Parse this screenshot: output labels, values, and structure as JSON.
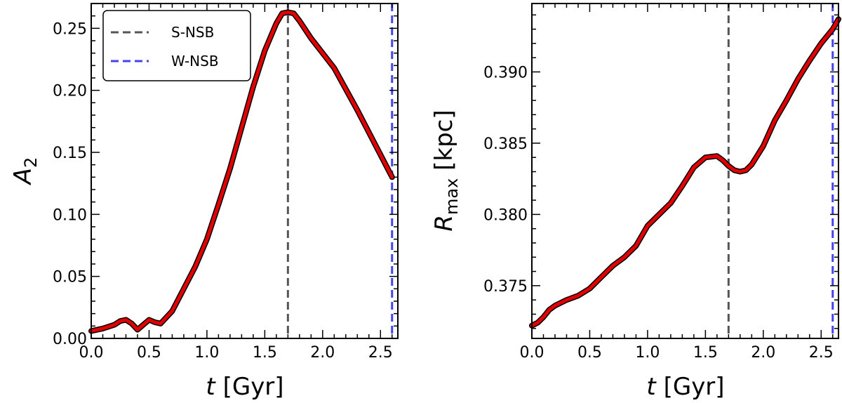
{
  "chart_data": [
    {
      "type": "line",
      "xlabel_var": "t",
      "xlabel_unit": "[Gyr]",
      "ylabel_var": "A",
      "ylabel_sub": "2",
      "xlim": [
        0.0,
        2.65
      ],
      "ylim": [
        0.0,
        0.27
      ],
      "xticks": [
        0.0,
        0.5,
        1.0,
        1.5,
        2.0,
        2.5
      ],
      "xtick_labels": [
        "0.0",
        "0.5",
        "1.0",
        "1.5",
        "2.0",
        "2.5"
      ],
      "yticks": [
        0.0,
        0.05,
        0.1,
        0.15,
        0.2,
        0.25
      ],
      "ytick_labels": [
        "0.00",
        "0.05",
        "0.10",
        "0.15",
        "0.20",
        "0.25"
      ],
      "series": [
        {
          "color": "#e00000",
          "x": [
            0.0,
            0.1,
            0.2,
            0.25,
            0.3,
            0.35,
            0.4,
            0.45,
            0.5,
            0.55,
            0.6,
            0.7,
            0.8,
            0.9,
            1.0,
            1.1,
            1.2,
            1.3,
            1.4,
            1.5,
            1.6,
            1.65,
            1.7,
            1.75,
            1.8,
            1.9,
            2.0,
            2.1,
            2.2,
            2.3,
            2.4,
            2.5,
            2.6
          ],
          "y": [
            0.006,
            0.008,
            0.011,
            0.014,
            0.015,
            0.012,
            0.007,
            0.011,
            0.015,
            0.013,
            0.012,
            0.022,
            0.04,
            0.058,
            0.08,
            0.108,
            0.137,
            0.17,
            0.203,
            0.232,
            0.254,
            0.262,
            0.263,
            0.262,
            0.256,
            0.242,
            0.23,
            0.218,
            0.201,
            0.184,
            0.166,
            0.148,
            0.13
          ]
        }
      ],
      "vlines": [
        {
          "x": 1.7,
          "color": "#555555",
          "label": "S-NSB"
        },
        {
          "x": 2.6,
          "color": "#4444ee",
          "label": "W-NSB"
        }
      ],
      "legend": {
        "position": "top-left",
        "entries": [
          "S-NSB",
          "W-NSB"
        ]
      },
      "grid": false
    },
    {
      "type": "line",
      "xlabel_var": "t",
      "xlabel_unit": "[Gyr]",
      "ylabel_var": "R",
      "ylabel_sub": "max",
      "ylabel_unit": "[kpc]",
      "xlim": [
        0.0,
        2.65
      ],
      "ylim": [
        0.3713,
        0.3948
      ],
      "xticks": [
        0.0,
        0.5,
        1.0,
        1.5,
        2.0,
        2.5
      ],
      "xtick_labels": [
        "0.0",
        "0.5",
        "1.0",
        "1.5",
        "2.0",
        "2.5"
      ],
      "yticks": [
        0.375,
        0.38,
        0.385,
        0.39
      ],
      "ytick_labels": [
        "0.375",
        "0.380",
        "0.385",
        "0.390"
      ],
      "series": [
        {
          "color": "#e00000",
          "x": [
            0.0,
            0.05,
            0.1,
            0.15,
            0.2,
            0.3,
            0.4,
            0.5,
            0.6,
            0.7,
            0.8,
            0.9,
            1.0,
            1.1,
            1.2,
            1.3,
            1.4,
            1.5,
            1.6,
            1.65,
            1.7,
            1.75,
            1.8,
            1.85,
            1.9,
            2.0,
            2.1,
            2.2,
            2.3,
            2.4,
            2.5,
            2.6,
            2.65
          ],
          "y": [
            0.3722,
            0.3724,
            0.3728,
            0.3733,
            0.3736,
            0.374,
            0.3743,
            0.3748,
            0.3756,
            0.3764,
            0.377,
            0.3778,
            0.3792,
            0.38,
            0.3808,
            0.382,
            0.3833,
            0.384,
            0.3841,
            0.3838,
            0.3834,
            0.3831,
            0.383,
            0.3831,
            0.3835,
            0.3848,
            0.3866,
            0.388,
            0.3895,
            0.3908,
            0.392,
            0.393,
            0.3937
          ]
        }
      ],
      "vlines": [
        {
          "x": 1.7,
          "color": "#555555",
          "label": "S-NSB"
        },
        {
          "x": 2.6,
          "color": "#4444ee",
          "label": "W-NSB"
        }
      ],
      "grid": false
    }
  ]
}
